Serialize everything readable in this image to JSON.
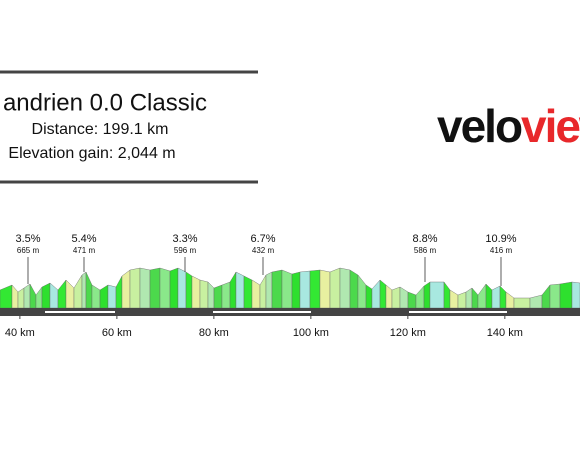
{
  "chart_data": {
    "type": "profile",
    "title": "andrien 0.0 Classic",
    "distance": "Distance: 199.1 km",
    "elevation_gain": "Elevation gain: 2,044 m",
    "logo": {
      "part1": "velo",
      "part2": "view"
    },
    "climbs": [
      {
        "gradient": "3.5%",
        "length": "665 m"
      },
      {
        "gradient": "5.4%",
        "length": "471 m"
      },
      {
        "gradient": "3.3%",
        "length": "596 m"
      },
      {
        "gradient": "6.7%",
        "length": "432 m"
      },
      {
        "gradient": "8.8%",
        "length": "586 m"
      },
      {
        "gradient": "10.9%",
        "length": "416 m"
      }
    ],
    "xlim": [
      35.9,
      155.5
    ],
    "xticks": [
      {
        "value": 40,
        "label": "40 km"
      },
      {
        "value": 60,
        "label": "60 km"
      },
      {
        "value": 80,
        "label": "80 km"
      },
      {
        "value": 100,
        "label": "100 km"
      },
      {
        "value": 120,
        "label": "120 km"
      },
      {
        "value": 140,
        "label": "140 km"
      }
    ]
  }
}
